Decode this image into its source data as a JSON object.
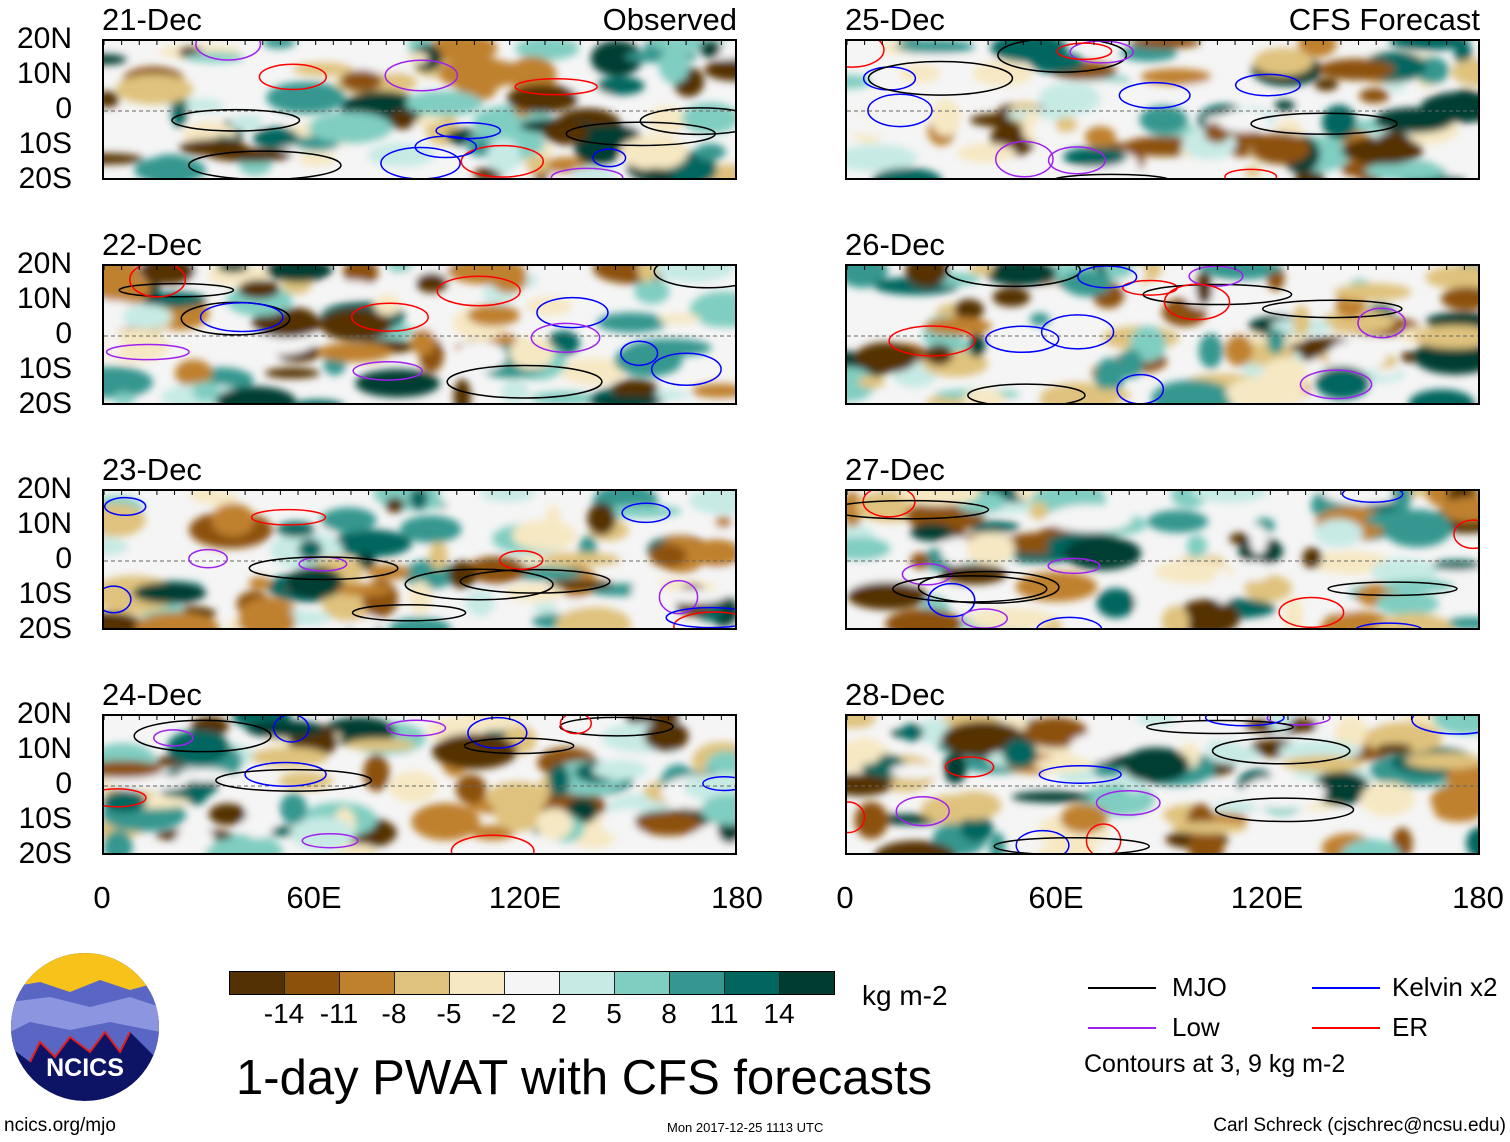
{
  "chart_data": {
    "type": "heatmap",
    "title": "1-day PWAT with CFS forecasts",
    "units": "kg m-2",
    "columns": [
      {
        "label": "Observed",
        "panels": [
          "21-Dec",
          "22-Dec",
          "23-Dec",
          "24-Dec"
        ]
      },
      {
        "label": "CFS Forecast",
        "panels": [
          "25-Dec",
          "26-Dec",
          "27-Dec",
          "28-Dec"
        ]
      }
    ],
    "y_ticks": [
      "20N",
      "10N",
      "0",
      "10S",
      "20S"
    ],
    "x_ticks": [
      "0",
      "60E",
      "120E",
      "180"
    ],
    "xlim": [
      0,
      180
    ],
    "ylim": [
      -20,
      20
    ],
    "colorbar": {
      "levels": [
        "-14",
        "-11",
        "-8",
        "-5",
        "-2",
        "2",
        "5",
        "8",
        "11",
        "14"
      ],
      "colors": [
        "#543005",
        "#8c510a",
        "#bf812d",
        "#dfc27d",
        "#f6e8c3",
        "#f5f5f5",
        "#c7eae5",
        "#80cdc1",
        "#35978f",
        "#01665e",
        "#003c30"
      ]
    },
    "legend": [
      {
        "name": "MJO",
        "color": "#000000"
      },
      {
        "name": "Kelvin x2",
        "color": "#0000ff"
      },
      {
        "name": "Low",
        "color": "#a020f0"
      },
      {
        "name": "ER",
        "color": "#ff0000"
      }
    ],
    "contour_note": "Contours at 3, 9 kg m-2"
  },
  "footer": {
    "site": "ncics.org/mjo",
    "timestamp": "Mon 2017-12-25 1113 UTC",
    "author": "Carl Schreck (cjschrec@ncsu.edu)",
    "logo_text": "NCICS"
  }
}
